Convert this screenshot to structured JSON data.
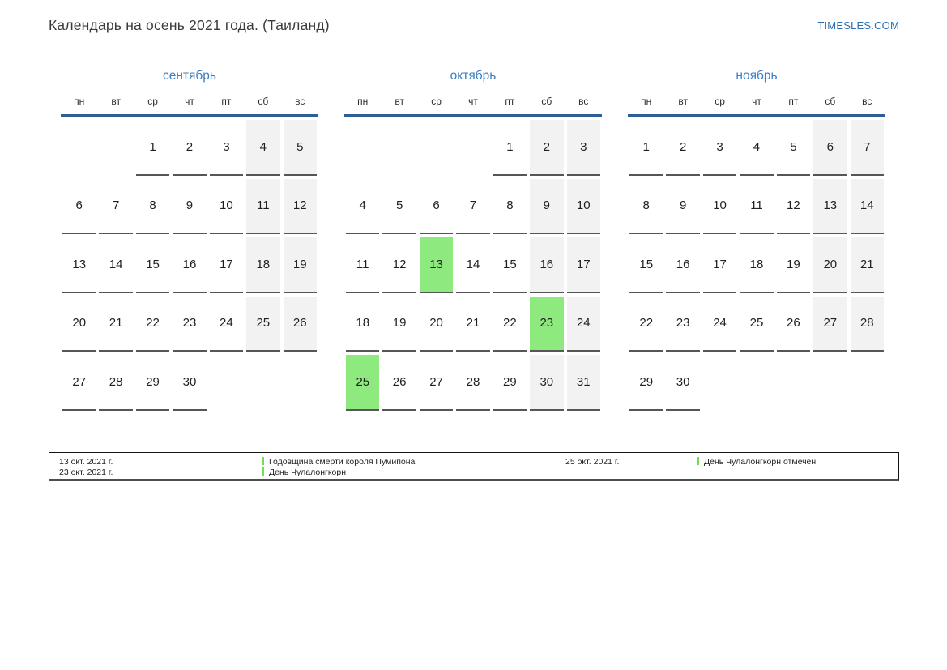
{
  "header": {
    "title": "Календарь на осень 2021 года. (Таиланд)",
    "site": "TIMESLES.COM"
  },
  "weekdays": [
    "пн",
    "вт",
    "ср",
    "чт",
    "пт",
    "сб",
    "вс"
  ],
  "months": [
    {
      "name": "сентябрь",
      "weeks": [
        [
          "",
          "",
          1,
          2,
          3,
          4,
          5
        ],
        [
          6,
          7,
          8,
          9,
          10,
          11,
          12
        ],
        [
          13,
          14,
          15,
          16,
          17,
          18,
          19
        ],
        [
          20,
          21,
          22,
          23,
          24,
          25,
          26
        ],
        [
          27,
          28,
          29,
          30,
          "",
          "",
          ""
        ]
      ],
      "highlighted_days": []
    },
    {
      "name": "октябрь",
      "weeks": [
        [
          "",
          "",
          "",
          "",
          1,
          2,
          3
        ],
        [
          4,
          5,
          6,
          7,
          8,
          9,
          10
        ],
        [
          11,
          12,
          13,
          14,
          15,
          16,
          17
        ],
        [
          18,
          19,
          20,
          21,
          22,
          23,
          24
        ],
        [
          25,
          26,
          27,
          28,
          29,
          30,
          31
        ]
      ],
      "highlighted_days": [
        13,
        23,
        25
      ]
    },
    {
      "name": "ноябрь",
      "weeks": [
        [
          1,
          2,
          3,
          4,
          5,
          6,
          7
        ],
        [
          8,
          9,
          10,
          11,
          12,
          13,
          14
        ],
        [
          15,
          16,
          17,
          18,
          19,
          20,
          21
        ],
        [
          22,
          23,
          24,
          25,
          26,
          27,
          28
        ],
        [
          29,
          30,
          "",
          "",
          "",
          "",
          ""
        ]
      ],
      "highlighted_days": []
    }
  ],
  "legend": {
    "entries": [
      {
        "date": "13 окт. 2021 г.",
        "label": "Годовщина смерти короля Пумипона"
      },
      {
        "date": "23 окт. 2021 г.",
        "label": "День Чулалонгкорн"
      }
    ],
    "note": {
      "date": "25 окт. 2021 г.",
      "label": "День Чулалонгкорн отмечен"
    }
  },
  "colors": {
    "month_title_blue": "#3d7ec2",
    "header_line_blue": "#2e5f94",
    "link_blue": "#2a6db6",
    "weekend_bg": "#f2f2f2",
    "highlight_green": "#8ee97e",
    "legend_bar_green": "#70e052",
    "underline_gray": "#565656"
  }
}
